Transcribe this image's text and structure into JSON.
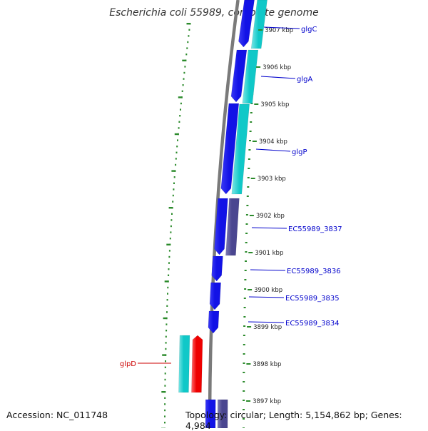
{
  "title": "Escherichia coli 55989, complete genome",
  "accession_text": "Accession: NC_011748",
  "topology_text": "Topology: circular; Length: 5,154,862 bp; Genes: 4,984",
  "colors": {
    "forward_cds": "#1212e6",
    "forward_cds_light": "#3a3af5",
    "reverse_cds": "#10c8c8",
    "reverse_cds_light": "#7be6e6",
    "other_feature": "#4a4690",
    "other_feature_light": "#7e7ab6",
    "red_feature": "#ee0000",
    "red_feature_light": "#ff6868",
    "backbone": "#7a7a7a",
    "dotted_track": "#2b8a2b",
    "label_line_blue": "#0000cc",
    "label_line_red": "#cc0000"
  },
  "axis_ticks": [
    {
      "label": "3907 kbp"
    },
    {
      "label": "3906 kbp"
    },
    {
      "label": "3905 kbp"
    },
    {
      "label": "3904 kbp"
    },
    {
      "label": "3903 kbp"
    },
    {
      "label": "3902 kbp"
    },
    {
      "label": "3901 kbp"
    },
    {
      "label": "3900 kbp"
    },
    {
      "label": "3899 kbp"
    },
    {
      "label": "3898 kbp"
    },
    {
      "label": "3897 kbp"
    }
  ],
  "gene_labels": [
    {
      "name": "glgC",
      "color": "#0000cc"
    },
    {
      "name": "glgA",
      "color": "#0000cc"
    },
    {
      "name": "glgP",
      "color": "#0000cc"
    },
    {
      "name": "EC55989_3837",
      "color": "#0000cc"
    },
    {
      "name": "EC55989_3836",
      "color": "#0000cc"
    },
    {
      "name": "EC55989_3835",
      "color": "#0000cc"
    },
    {
      "name": "EC55989_3834",
      "color": "#0000cc"
    },
    {
      "name": "glpD",
      "color": "#cc0000"
    }
  ]
}
